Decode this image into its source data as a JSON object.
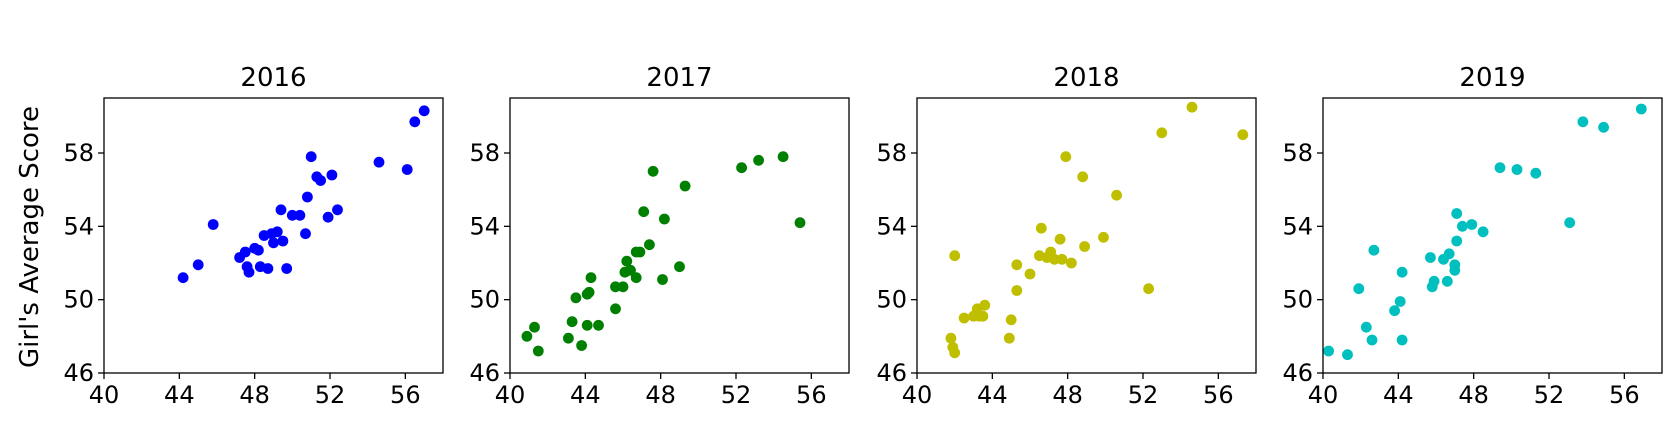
{
  "chart_data": {
    "type": "scatter",
    "ylabel": "Girl's Average Score",
    "xlim": [
      40,
      58
    ],
    "ylim": [
      46,
      61
    ],
    "xticks": [
      40,
      44,
      48,
      52,
      56
    ],
    "yticks": [
      46,
      50,
      54,
      58
    ],
    "panels": [
      {
        "title": "2016",
        "color": "#0000ff",
        "points": [
          [
            44.2,
            51.2
          ],
          [
            45.0,
            51.9
          ],
          [
            45.8,
            54.1
          ],
          [
            47.2,
            52.3
          ],
          [
            47.5,
            52.6
          ],
          [
            47.6,
            51.8
          ],
          [
            47.7,
            51.5
          ],
          [
            48.0,
            52.8
          ],
          [
            48.2,
            52.7
          ],
          [
            48.3,
            51.8
          ],
          [
            48.5,
            53.5
          ],
          [
            48.7,
            51.7
          ],
          [
            48.9,
            53.6
          ],
          [
            49.0,
            53.1
          ],
          [
            49.2,
            53.7
          ],
          [
            49.4,
            54.9
          ],
          [
            49.5,
            53.2
          ],
          [
            49.7,
            51.7
          ],
          [
            50.0,
            54.6
          ],
          [
            50.4,
            54.6
          ],
          [
            50.7,
            53.6
          ],
          [
            50.8,
            55.6
          ],
          [
            51.0,
            57.8
          ],
          [
            51.3,
            56.7
          ],
          [
            51.5,
            56.5
          ],
          [
            51.9,
            54.5
          ],
          [
            52.1,
            56.8
          ],
          [
            52.4,
            54.9
          ],
          [
            54.6,
            57.5
          ],
          [
            56.1,
            57.1
          ],
          [
            56.5,
            59.7
          ],
          [
            57.0,
            60.3
          ]
        ]
      },
      {
        "title": "2017",
        "color": "#008000",
        "points": [
          [
            40.9,
            48.0
          ],
          [
            41.3,
            48.5
          ],
          [
            41.5,
            47.2
          ],
          [
            43.1,
            47.9
          ],
          [
            43.3,
            48.8
          ],
          [
            43.5,
            50.1
          ],
          [
            43.8,
            47.5
          ],
          [
            44.1,
            48.6
          ],
          [
            44.1,
            50.3
          ],
          [
            44.2,
            50.4
          ],
          [
            44.3,
            51.2
          ],
          [
            44.7,
            48.6
          ],
          [
            45.6,
            49.5
          ],
          [
            45.6,
            50.7
          ],
          [
            46.0,
            50.7
          ],
          [
            46.1,
            51.5
          ],
          [
            46.2,
            52.1
          ],
          [
            46.4,
            51.6
          ],
          [
            46.7,
            51.2
          ],
          [
            46.7,
            52.6
          ],
          [
            46.9,
            52.6
          ],
          [
            47.1,
            54.8
          ],
          [
            47.4,
            53.0
          ],
          [
            47.6,
            57.0
          ],
          [
            48.1,
            51.1
          ],
          [
            48.2,
            54.4
          ],
          [
            49.0,
            51.8
          ],
          [
            49.3,
            56.2
          ],
          [
            52.3,
            57.2
          ],
          [
            53.2,
            57.6
          ],
          [
            54.5,
            57.8
          ],
          [
            55.4,
            54.2
          ]
        ]
      },
      {
        "title": "2018",
        "color": "#bfbf00",
        "points": [
          [
            41.8,
            47.9
          ],
          [
            41.9,
            47.4
          ],
          [
            42.0,
            47.1
          ],
          [
            42.0,
            52.4
          ],
          [
            42.5,
            49.0
          ],
          [
            43.0,
            49.1
          ],
          [
            43.2,
            49.5
          ],
          [
            43.3,
            49.1
          ],
          [
            43.5,
            49.1
          ],
          [
            43.6,
            49.7
          ],
          [
            44.9,
            47.9
          ],
          [
            45.0,
            48.9
          ],
          [
            45.3,
            50.5
          ],
          [
            45.3,
            51.9
          ],
          [
            46.0,
            51.4
          ],
          [
            46.5,
            52.4
          ],
          [
            46.6,
            53.9
          ],
          [
            46.9,
            52.3
          ],
          [
            47.1,
            52.6
          ],
          [
            47.3,
            52.2
          ],
          [
            47.6,
            53.3
          ],
          [
            47.7,
            52.2
          ],
          [
            47.9,
            57.8
          ],
          [
            48.2,
            52.0
          ],
          [
            48.8,
            56.7
          ],
          [
            48.9,
            52.9
          ],
          [
            49.9,
            53.4
          ],
          [
            50.6,
            55.7
          ],
          [
            52.3,
            50.6
          ],
          [
            53.0,
            59.1
          ],
          [
            54.6,
            60.5
          ],
          [
            57.3,
            59.0
          ]
        ]
      },
      {
        "title": "2019",
        "color": "#00bfbf",
        "points": [
          [
            40.3,
            47.2
          ],
          [
            41.3,
            47.0
          ],
          [
            41.9,
            50.6
          ],
          [
            42.3,
            48.5
          ],
          [
            42.6,
            47.8
          ],
          [
            42.7,
            52.7
          ],
          [
            43.8,
            49.4
          ],
          [
            44.1,
            49.9
          ],
          [
            44.2,
            51.5
          ],
          [
            44.2,
            47.8
          ],
          [
            45.7,
            52.3
          ],
          [
            45.8,
            50.7
          ],
          [
            45.9,
            51.0
          ],
          [
            46.4,
            52.2
          ],
          [
            46.6,
            51.0
          ],
          [
            46.7,
            52.5
          ],
          [
            47.0,
            51.6
          ],
          [
            47.0,
            51.9
          ],
          [
            47.1,
            53.2
          ],
          [
            47.1,
            54.7
          ],
          [
            47.4,
            54.0
          ],
          [
            47.9,
            54.1
          ],
          [
            48.5,
            53.7
          ],
          [
            49.4,
            57.2
          ],
          [
            50.3,
            57.1
          ],
          [
            51.3,
            56.9
          ],
          [
            53.1,
            54.2
          ],
          [
            53.8,
            59.7
          ],
          [
            54.9,
            59.4
          ],
          [
            56.9,
            60.4
          ]
        ]
      }
    ]
  }
}
